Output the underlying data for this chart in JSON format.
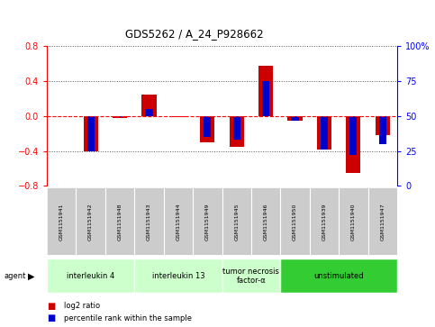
{
  "title": "GDS5262 / A_24_P928662",
  "samples": [
    "GSM1151941",
    "GSM1151942",
    "GSM1151948",
    "GSM1151943",
    "GSM1151944",
    "GSM1151949",
    "GSM1151945",
    "GSM1151946",
    "GSM1151950",
    "GSM1151939",
    "GSM1151940",
    "GSM1151947"
  ],
  "log2_ratio": [
    0.0,
    -0.4,
    -0.02,
    0.25,
    -0.01,
    -0.3,
    -0.35,
    0.58,
    -0.05,
    -0.38,
    -0.65,
    -0.22
  ],
  "percentile": [
    50,
    25,
    49,
    55,
    50,
    35,
    33,
    75,
    47,
    26,
    22,
    30
  ],
  "agents": [
    {
      "label": "interleukin 4",
      "start": 0,
      "end": 3,
      "color": "#ccffcc"
    },
    {
      "label": "interleukin 13",
      "start": 3,
      "end": 6,
      "color": "#ccffcc"
    },
    {
      "label": "tumor necrosis\nfactor-α",
      "start": 6,
      "end": 8,
      "color": "#ccffcc"
    },
    {
      "label": "unstimulated",
      "start": 8,
      "end": 12,
      "color": "#33cc33"
    }
  ],
  "ylim": [
    -0.8,
    0.8
  ],
  "yticks_left": [
    -0.8,
    -0.4,
    0.0,
    0.4,
    0.8
  ],
  "yticks_right": [
    0,
    25,
    50,
    75,
    100
  ],
  "bar_color_red": "#cc0000",
  "bar_color_blue": "#0000cc",
  "background_color": "#ffffff",
  "grid_color": "#555555",
  "sample_box_color": "#cccccc",
  "title_color": "#000000",
  "bar_width": 0.5,
  "percentile_bar_width": 0.25
}
